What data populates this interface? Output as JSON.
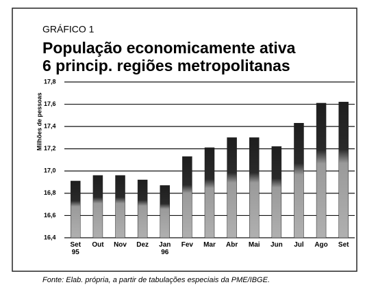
{
  "chart_data": {
    "type": "bar",
    "label": "GRÁFICO 1",
    "title": "População economicamente ativa",
    "subtitle": "6 princip. regiões metropolitanas",
    "y_label": "Milhões de pessoas",
    "categories": [
      "Set\n95",
      "Out",
      "Nov",
      "Dez",
      "Jan\n96",
      "Fev",
      "Mar",
      "Abr",
      "Mai",
      "Jun",
      "Jul",
      "Ago",
      "Set"
    ],
    "values": [
      16.91,
      16.96,
      16.96,
      16.92,
      16.87,
      17.13,
      17.21,
      17.3,
      17.3,
      17.22,
      17.43,
      17.61,
      17.62
    ],
    "color": "#1e1e1e",
    "ylim": [
      16.4,
      17.8
    ],
    "yticks": [
      {
        "value": 16.4,
        "label": "16,4"
      },
      {
        "value": 16.6,
        "label": "16,6"
      },
      {
        "value": 16.8,
        "label": "16,8"
      },
      {
        "value": 17.0,
        "label": "17,0"
      },
      {
        "value": 17.2,
        "label": "17,2"
      },
      {
        "value": 17.4,
        "label": "17,4"
      },
      {
        "value": 17.6,
        "label": "17,6"
      },
      {
        "value": 17.8,
        "label": "17,8"
      }
    ],
    "grid": true,
    "source": "Fonte: Elab. própria, a partir de tabulações especiais da PME/IBGE."
  }
}
